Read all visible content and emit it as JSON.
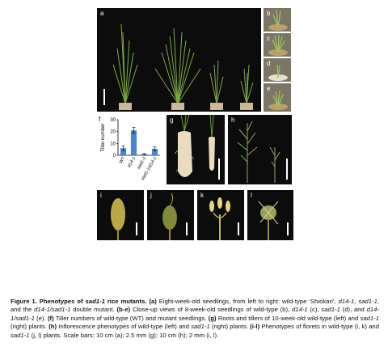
{
  "panels": {
    "a": "a",
    "b": "b",
    "c": "c",
    "d": "d",
    "e": "e",
    "f": "f",
    "g": "g",
    "h": "h",
    "i": "i",
    "j": "j",
    "k": "k",
    "l": "l"
  },
  "chart_data": {
    "type": "bar",
    "categories": [
      "WT",
      "d14-1",
      "sad1-1",
      "sad1-1/d14-1"
    ],
    "values": [
      6,
      21,
      1,
      5.5
    ],
    "errors": [
      2,
      2.5,
      0.5,
      1.5
    ],
    "ylabel": "Tiller number",
    "ylim": [
      0,
      30
    ],
    "yticks": [
      0,
      10,
      20,
      30
    ],
    "bar_color": "#4a86c8"
  },
  "caption": {
    "title_prefix": "Figure 1. Phenotypes of ",
    "title_gene": "sad1-1",
    "title_suffix": " rice mutants.",
    "a_label": "(a)",
    "a_text_1": " Eight-week-old seedlings, from left to right: wild-type ‘Shiokari’, ",
    "g_d14": "d14-1",
    "t_comma": ", ",
    "g_sad": "sad1-1",
    "a_text_2": ", and the ",
    "g_double": "d14-1/sad1-1",
    "a_text_3": " double mutant. ",
    "be_label": "(b-e)",
    "be_text_1": " Close-up views of 8-week-old seedlings of wild-type (b), ",
    "be_d14": "d14-1",
    "be_text_2": " (c), ",
    "be_sad": "sad1-1",
    "be_text_3": " (d), and ",
    "be_double": "d14-1/sad1-1",
    "be_text_4": " (e). ",
    "f_label": "(f)",
    "f_text": " Tiller numbers of wild-type (WT) and mutant seedlings. ",
    "g_label": "(g)",
    "g_text_1": " Roots and tillers of 10-week-old wild-type (left) and ",
    "g_sad2": "sad1-1",
    "g_text_2": " (right) plants. ",
    "h_label": "(h)",
    "h_text_1": " Inflorescence phenotypes of wild-type (left) and ",
    "h_sad": "sad1-1",
    "h_text_2": " (right) plants. ",
    "il_label": "(i-l)",
    "il_text_1": " Phenotypes of florets in wild-type (i, k) and ",
    "il_sad": "sad1-1",
    "il_text_2": " (j, l) plants. Scale bars: 10 cm (a); 2.5 mm (g); 10 cm (h); 2 mm (i, l)."
  }
}
